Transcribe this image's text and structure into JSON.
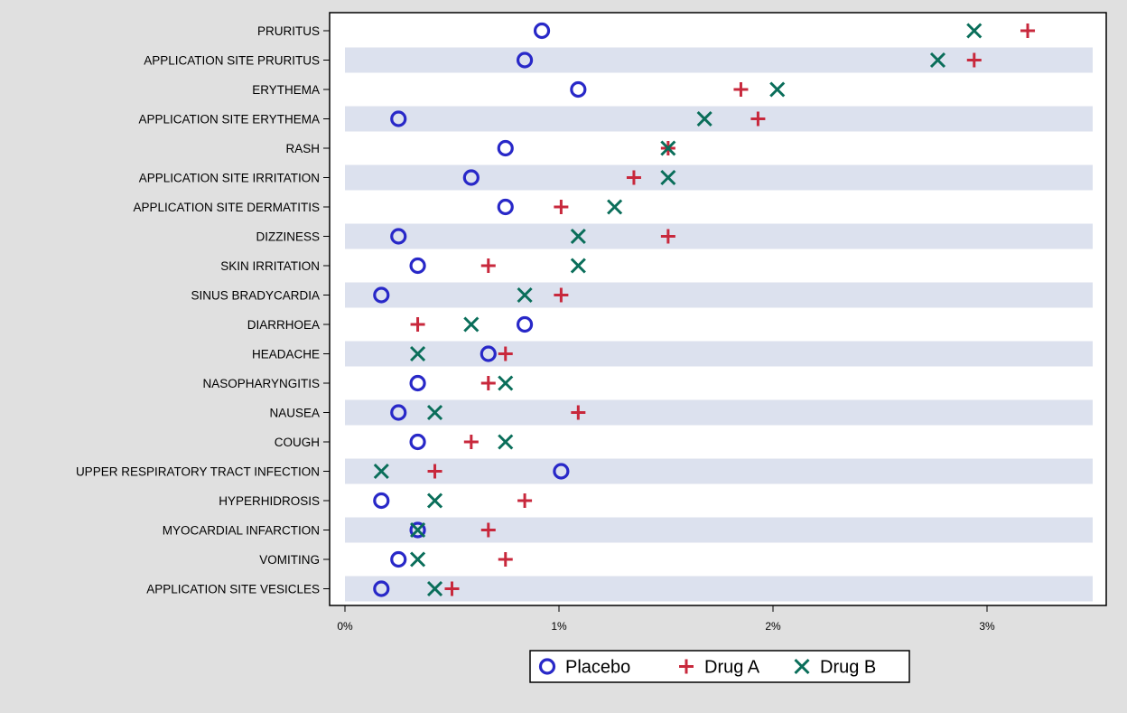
{
  "chart_data": {
    "type": "scatter",
    "orientation": "horizontal-dot-plot",
    "title": "",
    "xlabel": "",
    "ylabel": "",
    "xlim": [
      0,
      3.5
    ],
    "x_ticks": [
      0,
      1,
      2,
      3
    ],
    "x_tick_labels": [
      "0%",
      "1%",
      "2%",
      "3%"
    ],
    "categories": [
      "PRURITUS",
      "APPLICATION SITE PRURITUS",
      "ERYTHEMA",
      "APPLICATION SITE ERYTHEMA",
      "RASH",
      "APPLICATION SITE IRRITATION",
      "APPLICATION SITE DERMATITIS",
      "DIZZINESS",
      "SKIN IRRITATION",
      "SINUS BRADYCARDIA",
      "DIARRHOEA",
      "HEADACHE",
      "NASOPHARYNGITIS",
      "NAUSEA",
      "COUGH",
      "UPPER RESPIRATORY TRACT INFECTION",
      "HYPERHIDROSIS",
      "MYOCARDIAL INFARCTION",
      "VOMITING",
      "APPLICATION SITE VESICLES"
    ],
    "series": [
      {
        "name": "Placebo",
        "marker": "circle",
        "color": "#2828c8",
        "values": [
          0.92,
          0.84,
          1.09,
          0.25,
          0.75,
          0.59,
          0.75,
          0.25,
          0.34,
          0.17,
          0.84,
          0.67,
          0.34,
          0.25,
          0.34,
          1.01,
          0.17,
          0.34,
          0.25,
          0.17
        ]
      },
      {
        "name": "Drug A",
        "marker": "plus",
        "color": "#c8283c",
        "values": [
          3.19,
          2.94,
          1.85,
          1.93,
          1.51,
          1.35,
          1.01,
          1.51,
          0.67,
          1.01,
          0.34,
          0.75,
          0.67,
          1.09,
          0.59,
          0.42,
          0.84,
          0.67,
          0.75,
          0.5
        ]
      },
      {
        "name": "Drug B",
        "marker": "x",
        "color": "#0a6e5a",
        "values": [
          2.94,
          2.77,
          2.02,
          1.68,
          1.51,
          1.51,
          1.26,
          1.09,
          1.09,
          0.84,
          0.59,
          0.34,
          0.75,
          0.42,
          0.75,
          0.17,
          0.42,
          0.34,
          0.34,
          0.42
        ]
      }
    ],
    "grid": false,
    "band_color": "#dce1ee",
    "legend": {
      "position": "bottom-center"
    }
  }
}
